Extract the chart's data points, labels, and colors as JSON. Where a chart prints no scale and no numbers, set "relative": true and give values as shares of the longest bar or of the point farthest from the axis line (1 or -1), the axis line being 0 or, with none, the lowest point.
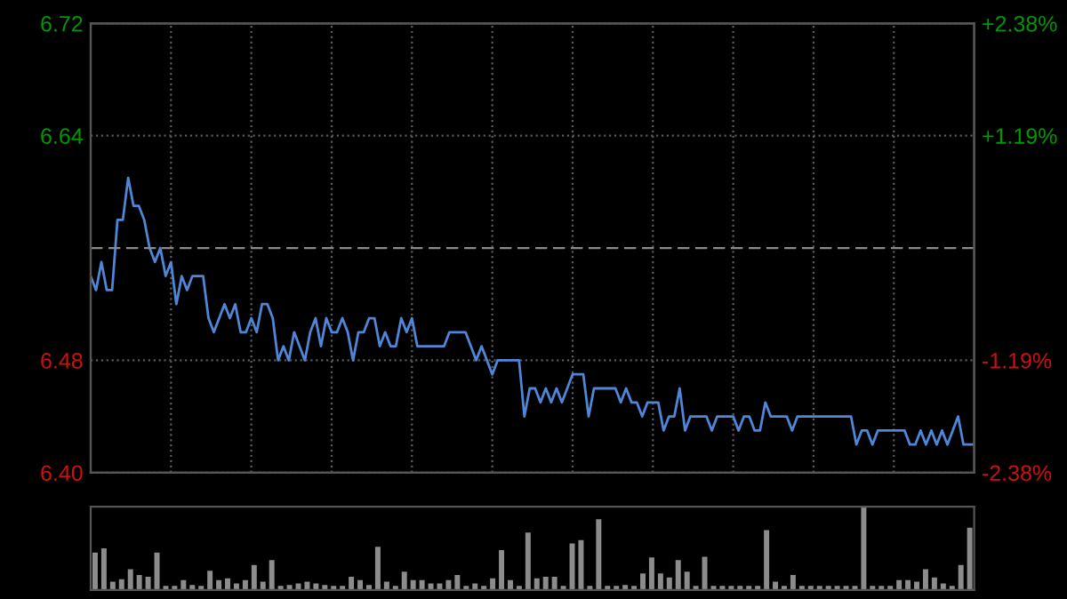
{
  "chart_data": [
    {
      "type": "line",
      "categories": [
        null,
        null,
        null,
        null,
        null,
        null,
        null,
        null,
        null,
        null,
        null,
        null,
        null,
        null,
        null,
        null,
        null,
        null,
        null,
        null,
        null,
        null,
        null,
        null,
        null,
        null,
        null,
        null,
        null,
        null,
        null,
        null,
        null,
        null,
        null,
        null,
        null,
        null,
        null,
        null,
        null,
        null,
        null,
        null,
        null,
        null,
        null,
        null,
        null,
        null,
        null,
        null,
        null,
        null,
        null,
        null,
        null,
        null,
        null,
        null,
        null,
        null,
        null,
        null,
        null,
        null,
        null,
        null,
        null,
        null,
        null,
        null,
        null,
        null,
        null,
        null,
        null,
        null,
        null,
        null,
        null,
        null,
        null,
        null,
        null,
        null,
        null,
        null,
        null,
        null,
        null,
        null,
        null,
        null,
        null,
        null,
        null,
        null,
        null,
        null,
        null,
        null,
        null,
        null,
        null,
        null,
        null,
        null,
        null,
        null,
        null,
        null,
        null,
        null,
        null,
        null,
        null,
        null,
        null,
        null,
        null,
        null,
        null,
        null,
        null,
        null,
        null,
        null,
        null,
        null,
        null,
        null,
        null,
        null,
        null,
        null,
        null,
        null,
        null,
        null,
        null,
        null,
        null,
        null,
        null,
        null,
        null,
        null,
        null,
        null,
        null,
        null,
        null,
        null,
        null,
        null,
        null,
        null,
        null,
        null,
        null,
        null,
        null,
        null,
        null,
        null
      ],
      "ylim": [
        6.4,
        6.72
      ],
      "yticks": [
        {
          "value": 6.4,
          "label": "6.40"
        },
        {
          "value": 6.48,
          "label": "6.48"
        },
        {
          "value": 6.64,
          "label": "6.64"
        },
        {
          "value": 6.72,
          "label": "6.72"
        }
      ],
      "y2lim": [
        -2.38,
        2.38
      ],
      "y2ticks": [
        {
          "value": -2.38,
          "label": "-2.38%"
        },
        {
          "value": -1.19,
          "label": "-1.19%"
        },
        {
          "value": 1.19,
          "label": "+1.19%"
        },
        {
          "value": 2.38,
          "label": "+2.38%"
        }
      ],
      "ref_lines": [
        {
          "axis": "y",
          "value": 6.56,
          "color": "#8a8a8a",
          "line_style": "dashed"
        }
      ],
      "grid": true,
      "series": [
        {
          "color": "#4f86d8",
          "values": [
            6.54,
            6.53,
            6.55,
            6.53,
            6.53,
            6.58,
            6.58,
            6.61,
            6.59,
            6.59,
            6.58,
            6.56,
            6.55,
            6.56,
            6.54,
            6.55,
            6.52,
            6.54,
            6.53,
            6.54,
            6.54,
            6.54,
            6.51,
            6.5,
            6.51,
            6.52,
            6.51,
            6.52,
            6.5,
            6.5,
            6.51,
            6.5,
            6.52,
            6.52,
            6.51,
            6.48,
            6.49,
            6.48,
            6.5,
            6.49,
            6.48,
            6.5,
            6.51,
            6.49,
            6.51,
            6.5,
            6.5,
            6.51,
            6.5,
            6.48,
            6.5,
            6.5,
            6.51,
            6.51,
            6.49,
            6.5,
            6.49,
            6.49,
            6.51,
            6.5,
            6.51,
            6.49,
            6.49,
            6.49,
            6.49,
            6.49,
            6.49,
            6.5,
            6.5,
            6.5,
            6.5,
            6.49,
            6.48,
            6.49,
            6.48,
            6.47,
            6.48,
            6.48,
            6.48,
            6.48,
            6.48,
            6.44,
            6.46,
            6.46,
            6.45,
            6.46,
            6.45,
            6.46,
            6.45,
            6.46,
            6.47,
            6.47,
            6.47,
            6.44,
            6.46,
            6.46,
            6.46,
            6.46,
            6.46,
            6.45,
            6.46,
            6.45,
            6.45,
            6.44,
            6.45,
            6.45,
            6.45,
            6.43,
            6.44,
            6.44,
            6.46,
            6.43,
            6.44,
            6.44,
            6.44,
            6.44,
            6.43,
            6.44,
            6.44,
            6.44,
            6.44,
            6.43,
            6.44,
            6.44,
            6.43,
            6.43,
            6.45,
            6.44,
            6.44,
            6.44,
            6.44,
            6.43,
            6.44,
            6.44,
            6.44,
            6.44,
            6.44,
            6.44,
            6.44,
            6.44,
            6.44,
            6.44,
            6.44,
            6.42,
            6.43,
            6.43,
            6.42,
            6.43,
            6.43,
            6.43,
            6.43,
            6.43,
            6.43,
            6.42,
            6.42,
            6.43,
            6.42,
            6.43,
            6.42,
            6.43,
            6.42,
            6.43,
            6.44,
            6.42,
            6.42,
            6.42
          ]
        }
      ]
    },
    {
      "type": "bar",
      "relative": true,
      "categories": [
        null,
        null,
        null,
        null,
        null,
        null,
        null,
        null,
        null,
        null,
        null,
        null,
        null,
        null,
        null,
        null,
        null,
        null,
        null,
        null,
        null,
        null,
        null,
        null,
        null,
        null,
        null,
        null,
        null,
        null,
        null,
        null,
        null,
        null,
        null,
        null,
        null,
        null,
        null,
        null,
        null,
        null,
        null,
        null,
        null,
        null,
        null,
        null,
        null,
        null,
        null,
        null,
        null,
        null,
        null,
        null,
        null,
        null,
        null,
        null,
        null,
        null,
        null,
        null,
        null,
        null,
        null,
        null,
        null,
        null,
        null,
        null,
        null,
        null,
        null,
        null,
        null,
        null,
        null,
        null,
        null,
        null,
        null,
        null,
        null,
        null,
        null,
        null,
        null,
        null,
        null,
        null,
        null,
        null,
        null,
        null,
        null,
        null,
        null,
        null
      ],
      "series": [
        {
          "color": "#8c8c8c",
          "values": [
            0.45,
            0.5,
            0.1,
            0.13,
            0.25,
            0.18,
            0.16,
            0.45,
            0.05,
            0.05,
            0.12,
            0.06,
            0.05,
            0.23,
            0.12,
            0.14,
            0.08,
            0.12,
            0.3,
            0.1,
            0.36,
            0.05,
            0.06,
            0.08,
            0.1,
            0.08,
            0.06,
            0.05,
            0.05,
            0.16,
            0.12,
            0.06,
            0.52,
            0.1,
            0.05,
            0.22,
            0.12,
            0.12,
            0.08,
            0.08,
            0.12,
            0.18,
            0.05,
            0.08,
            0.05,
            0.14,
            0.48,
            0.12,
            0.05,
            0.69,
            0.14,
            0.16,
            0.16,
            0.05,
            0.56,
            0.6,
            0.05,
            0.85,
            0.05,
            0.05,
            0.06,
            0.05,
            0.2,
            0.39,
            0.2,
            0.15,
            0.36,
            0.22,
            0.05,
            0.4,
            0.05,
            0.05,
            0.05,
            0.05,
            0.05,
            0.05,
            0.72,
            0.1,
            0.05,
            0.18,
            0.05,
            0.05,
            0.05,
            0.05,
            0.05,
            0.05,
            0.05,
            1.0,
            0.05,
            0.05,
            0.05,
            0.12,
            0.12,
            0.1,
            0.25,
            0.15,
            0.08,
            0.05,
            0.3,
            0.75
          ]
        }
      ]
    }
  ]
}
